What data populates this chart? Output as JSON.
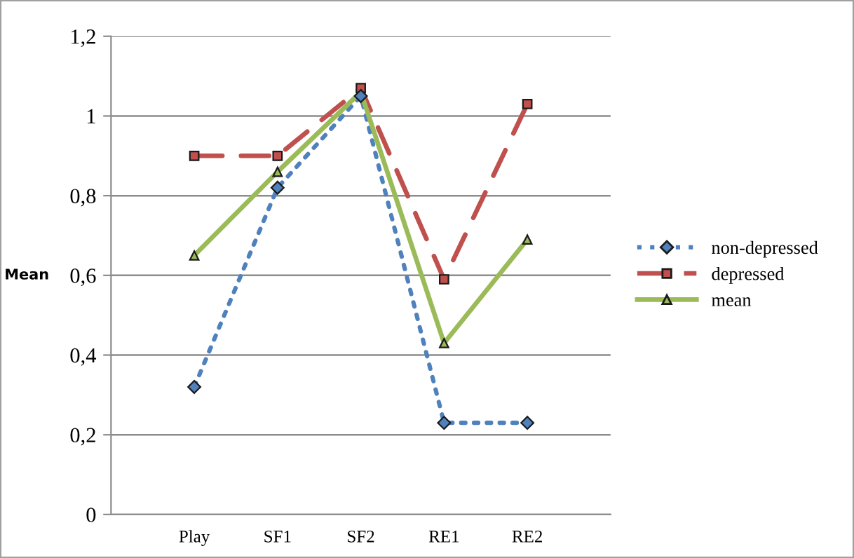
{
  "chart_data": {
    "type": "line",
    "ylabel": "Mean",
    "categories": [
      "Play",
      "SF1",
      "SF2",
      "RE1",
      "RE2"
    ],
    "series": [
      {
        "name": "non-depressed",
        "color": "#4f81bd",
        "values": [
          0.32,
          0.82,
          1.05,
          0.23,
          0.23
        ],
        "line_style": "dotted",
        "marker": "diamond"
      },
      {
        "name": "depressed",
        "color": "#c0504d",
        "values": [
          0.9,
          0.9,
          1.07,
          0.59,
          1.03
        ],
        "line_style": "dashed",
        "marker": "square"
      },
      {
        "name": "mean",
        "color": "#9bbb59",
        "values": [
          0.65,
          0.86,
          1.06,
          0.43,
          0.69
        ],
        "line_style": "solid",
        "marker": "triangle"
      }
    ],
    "ylim": [
      0,
      1.2
    ],
    "yticks": [
      0,
      {
        "value": 0.2,
        "label": "0,2"
      },
      {
        "value": 0.4,
        "label": "0,4"
      },
      {
        "value": 0.6,
        "label": "0,6"
      },
      {
        "value": 0.8,
        "label": "0,8"
      },
      1,
      {
        "value": 1.2,
        "label": "1,2"
      }
    ],
    "grid": "y",
    "legend": "right"
  }
}
